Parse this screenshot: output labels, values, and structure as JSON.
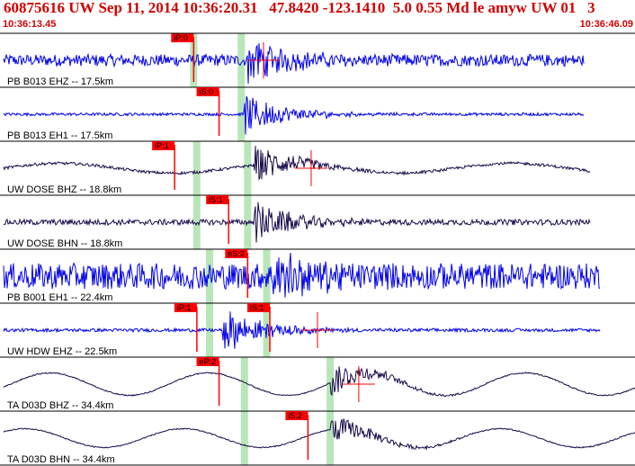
{
  "header": {
    "title": "60875616 UW Sep 11, 2014 10:36:20.31   47.8420 -123.1410  5.0 0.55 Md le amyw UW 01   3",
    "start_time": "10:36:13.45",
    "end_time": "10:36:46.09"
  },
  "colors": {
    "title": "#d00000",
    "pick_box": "#ff0000",
    "green_band": "#b8e6b8",
    "blue_trace": "#0000ee",
    "dark_trace": "#1a0a4a"
  },
  "chart_data": {
    "type": "line",
    "title": "60875616 UW Sep 11, 2014 10:36:20.31   47.8420 -123.1410  5.0 0.55 Md le amyw UW 01   3",
    "xlabel": "",
    "ylabel": "",
    "x_start": "10:36:13.45",
    "x_end": "10:36:46.09",
    "grid": false,
    "channels": [
      {
        "label": "PB B013 EHZ -- 17.5km",
        "color": "blue",
        "style": "noise_event",
        "onset": 0.39,
        "amp": 0.25,
        "event_amp": 1.0,
        "end": 0.92,
        "picks": [
          {
            "label": "iP:0",
            "t": 0.305
          }
        ],
        "greens": [
          0.305,
          0.38
        ],
        "red_marks": [
          0.415
        ]
      },
      {
        "label": "PB B013 EH1 -- 17.5km",
        "color": "blue",
        "style": "noise_event",
        "onset": 0.385,
        "amp": 0.06,
        "event_amp": 0.9,
        "end": 0.92,
        "picks": [
          {
            "label": "iS:0",
            "t": 0.345
          }
        ],
        "greens": [
          0.38
        ],
        "red_marks": []
      },
      {
        "label": "UW DOSE BHZ -- 18.8km",
        "color": "dark",
        "style": "wave_event",
        "onset": 0.4,
        "amp": 0.35,
        "event_amp": 0.85,
        "end": 0.93,
        "picks": [
          {
            "label": "iP:1",
            "t": 0.275
          }
        ],
        "greens": [
          0.31,
          0.39
        ],
        "red_marks": [
          0.49
        ]
      },
      {
        "label": "UW DOSE BHN -- 18.8km",
        "color": "dark",
        "style": "noise_event",
        "onset": 0.4,
        "amp": 0.12,
        "event_amp": 0.9,
        "end": 0.93,
        "picks": [
          {
            "label": "iS:1",
            "t": 0.36
          }
        ],
        "greens": [
          0.31,
          0.39
        ],
        "red_marks": []
      },
      {
        "label": "PB B001 EH1 -- 22.4km",
        "color": "blue",
        "style": "noise_event",
        "onset": 0.43,
        "amp": 0.55,
        "event_amp": 1.0,
        "end": 0.945,
        "picks": [
          {
            "label": "eS:2",
            "t": 0.39
          }
        ],
        "greens": [
          0.33,
          0.42
        ],
        "red_marks": []
      },
      {
        "label": "UW HDW EHZ -- 22.5km",
        "color": "blue",
        "style": "noise_event",
        "onset": 0.35,
        "amp": 0.07,
        "event_amp": 1.0,
        "end": 0.945,
        "picks": [
          {
            "label": "iP:1",
            "t": 0.31
          },
          {
            "label": "iS:1",
            "t": 0.425
          }
        ],
        "greens": [
          0.33,
          0.42
        ],
        "red_marks": [
          0.5
        ]
      },
      {
        "label": "TA D03D BHZ -- 34.4km",
        "color": "dark",
        "style": "long_wave",
        "onset": 0.52,
        "amp": 0.6,
        "event_amp": 0.7,
        "end": 1.0,
        "picks": [
          {
            "label": "eP:2",
            "t": 0.345
          }
        ],
        "greens": [
          0.385,
          0.52
        ],
        "red_marks": [
          0.565
        ]
      },
      {
        "label": "TA D03D BHN -- 34.4km",
        "color": "dark",
        "style": "long_wave",
        "onset": 0.52,
        "amp": 0.5,
        "event_amp": 0.6,
        "end": 1.0,
        "picks": [
          {
            "label": "iS:2",
            "t": 0.485
          }
        ],
        "greens": [
          0.385,
          0.52
        ],
        "red_marks": []
      }
    ]
  }
}
